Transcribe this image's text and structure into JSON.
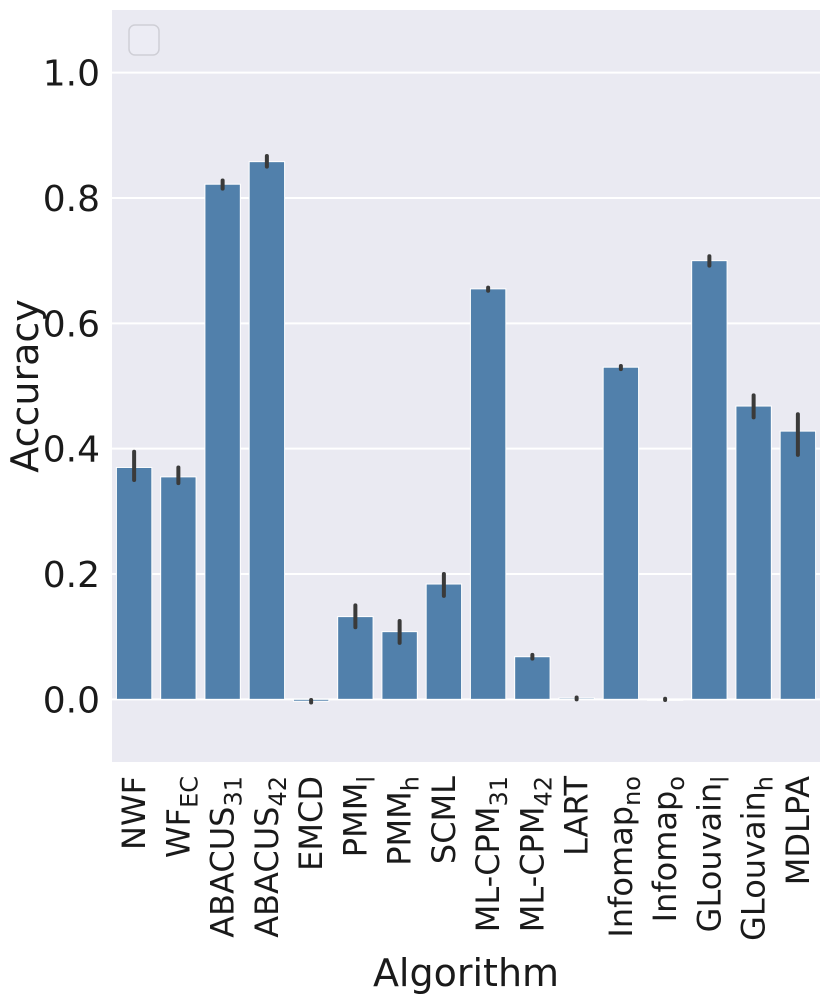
{
  "chart_data": {
    "type": "bar",
    "xlabel": "Algorithm",
    "ylabel": "Accuracy",
    "ylim": [
      -0.1,
      1.1
    ],
    "yticks": [
      0.0,
      0.2,
      0.4,
      0.6,
      0.8,
      1.0
    ],
    "ytick_labels": [
      "0.0",
      "0.2",
      "0.4",
      "0.6",
      "0.8",
      "1.0"
    ],
    "grid": true,
    "legend": "top-left (empty)",
    "colors": {
      "bar": "#5180ab",
      "error": "#3a3a3a",
      "background": "#eaeaf2",
      "grid": "#ffffff"
    },
    "categories": [
      {
        "base": "NWF",
        "sub": ""
      },
      {
        "base": "WF",
        "sub": "EC"
      },
      {
        "base": "ABACUS",
        "sub": "31"
      },
      {
        "base": "ABACUS",
        "sub": "42"
      },
      {
        "base": "EMCD",
        "sub": ""
      },
      {
        "base": "PMM",
        "sub": "l"
      },
      {
        "base": "PMM",
        "sub": "h"
      },
      {
        "base": "SCML",
        "sub": ""
      },
      {
        "base": "ML-CPM",
        "sub": "31"
      },
      {
        "base": "ML-CPM",
        "sub": "42"
      },
      {
        "base": "LART",
        "sub": ""
      },
      {
        "base": "Infomap",
        "sub": "no"
      },
      {
        "base": "Infomap",
        "sub": "o"
      },
      {
        "base": "GLouvain",
        "sub": "l"
      },
      {
        "base": "GLouvain",
        "sub": "h"
      },
      {
        "base": "MDLPA",
        "sub": ""
      }
    ],
    "values": [
      0.37,
      0.355,
      0.822,
      0.858,
      -0.003,
      0.132,
      0.108,
      0.184,
      0.655,
      0.068,
      0.002,
      0.53,
      0.0,
      0.7,
      0.468,
      0.428
    ],
    "error_low": [
      0.35,
      0.345,
      0.815,
      0.85,
      -0.005,
      0.115,
      0.09,
      0.165,
      0.652,
      0.065,
      0.0,
      0.527,
      -0.001,
      0.692,
      0.45,
      0.39
    ],
    "error_high": [
      0.395,
      0.37,
      0.828,
      0.867,
      -0.001,
      0.15,
      0.125,
      0.2,
      0.657,
      0.071,
      0.003,
      0.532,
      0.001,
      0.707,
      0.485,
      0.455
    ]
  }
}
